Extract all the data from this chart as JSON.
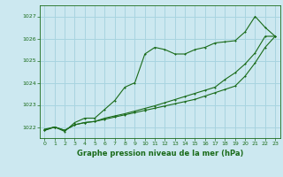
{
  "title": "Graphe pression niveau de la mer (hPa)",
  "background_color": "#cce8f0",
  "grid_color": "#a8d4e0",
  "line_color": "#1a6b1a",
  "xlim": [
    -0.5,
    23.5
  ],
  "ylim": [
    1021.5,
    1027.5
  ],
  "yticks": [
    1022,
    1023,
    1024,
    1025,
    1026,
    1027
  ],
  "xticks": [
    0,
    1,
    2,
    3,
    4,
    5,
    6,
    7,
    8,
    9,
    10,
    11,
    12,
    13,
    14,
    15,
    16,
    17,
    18,
    19,
    20,
    21,
    22,
    23
  ],
  "series1": [
    1021.9,
    1022.0,
    1021.8,
    1022.2,
    1022.4,
    1022.4,
    1022.8,
    1023.2,
    1023.8,
    1024.0,
    1025.3,
    1025.6,
    1025.5,
    1025.3,
    1025.3,
    1025.5,
    1025.6,
    1025.8,
    1025.85,
    1025.9,
    1026.3,
    1027.0,
    1026.5,
    1026.1
  ],
  "series2": [
    1021.85,
    1022.0,
    1021.85,
    1022.1,
    1022.2,
    1022.25,
    1022.35,
    1022.45,
    1022.55,
    1022.65,
    1022.75,
    1022.85,
    1022.95,
    1023.05,
    1023.15,
    1023.25,
    1023.4,
    1023.55,
    1023.7,
    1023.85,
    1024.3,
    1024.9,
    1025.6,
    1026.1
  ],
  "series3": [
    1021.85,
    1022.0,
    1021.85,
    1022.1,
    1022.2,
    1022.25,
    1022.4,
    1022.5,
    1022.6,
    1022.72,
    1022.84,
    1022.96,
    1023.1,
    1023.24,
    1023.38,
    1023.52,
    1023.66,
    1023.8,
    1024.15,
    1024.45,
    1024.85,
    1025.35,
    1026.1,
    1026.1
  ]
}
